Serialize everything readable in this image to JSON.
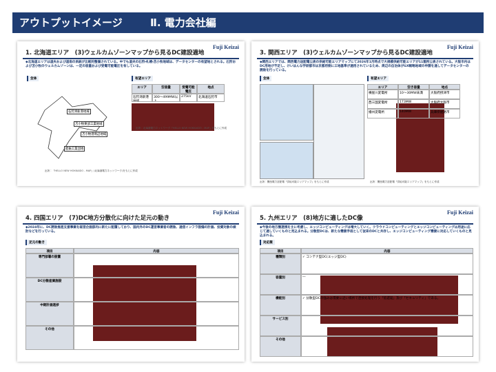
{
  "header": {
    "title": "アウトプットイメージ",
    "subtitle": "Ⅱ. 電力会社編"
  },
  "slides": [
    {
      "title": "1. 北海道エリア　(3)ウェルカムゾーンマップから見るDC建設適地",
      "logo": "Fuji Keizai",
      "description": "◆北海道エリアは道央および道南の系統が比較的整備されている。中でも道央の石狩・札幌・苫小牧地域は、データセンターの有望地とされる。石狩および苫小牧のウェルカムゾーンは、一定の容量および受電可能電圧を有している。",
      "left_label": "全体",
      "right_label": "有望エリア",
      "map_labels": [
        "石狩湾新港地域",
        "苫小牧東部工業地域",
        "苫小牧港周辺地域",
        "胆振工業団地"
      ],
      "table": {
        "header": [
          "エリア",
          "空容量",
          "受電可能電圧",
          "地点"
        ],
        "rows": [
          [
            "石狩湾新港地域",
            "300～499MW以上",
            "275kV",
            "北海道石狩市"
          ]
        ]
      },
      "sources": [
        "出所：「HELLO NEW HOKKAIDO - MAP」(北海道電力ネットワーク)をもとに作成",
        "出所：北海道電力ネットワーク「HELLO NEW HOKKAIDO - MAP」をもとに作成"
      ]
    },
    {
      "title": "3. 関西エリア　(3)ウェルカムゾーンマップから見るDC建設適地",
      "logo": "Fuji Keizai",
      "description": "◆関西エリアでは、関西電力送配電公表の供給可能エリアマップにて2026年1月時点で大規模供給可能エリアが11箇所公表されている。大阪市内はDC用地が不足し、けいはんな学研都市は京都府側に三地基準が適用されているため、周辺の自治体がGX戦略地域の申請を通してデータセンターの誘致を行っている。",
      "left_label": "全体",
      "right_label": "有望エリア",
      "table": {
        "header": [
          "エリア",
          "空き容量",
          "地点"
        ],
        "rows": [
          [
            "横屋川変電所",
            "10～30MW未満",
            "大阪府摂津市"
          ],
          [
            "西三国変電所",
            "173MW",
            "大阪府大阪市"
          ],
          [
            "播州変電所",
            "140MW",
            "兵庫県姫路市"
          ]
        ]
      },
      "sources": [
        "出所：関西電力送配電「供給可能エリアマップ」をもとに作成",
        "出所：関西電力送配電「供給可能エリアマップ」をもとに作成"
      ]
    },
    {
      "title": "4. 四国エリア　(7)DC地方分散化に向けた足元の動き",
      "logo": "Fuji Keizai",
      "description": "◆2024年に、DC誘致推進支援事業を経営企画部内に新たに配置しており、国内外のDC運営事業者の誘致、通信インフラ設備の計画、投資対象の検討などを行っている。",
      "section": "足元の動き",
      "table": {
        "header": [
          "項目",
          "内容"
        ],
        "rows": [
          "専門部署の設置",
          "DC分散産業施設",
          "中期計画進捗",
          "その他"
        ]
      }
    },
    {
      "title": "5. 九州エリア　(8)地方に適したDC像",
      "logo": "Fuji Keizai",
      "description": "◆今後の地方圏連携を主に考慮し、エッジコンピューティングは増大していく。クラウドコンピューティングとエッジコンピューティングは用途に応じて適していくものと見込まれる。分散型DCは、新たな需要手段として従来のDCと共存し、エッジコンピューティング需要に対応していくものと見込まれる。",
      "section": "対応策",
      "table": {
        "header": [
          "項目",
          "内容"
        ],
        "rows": [
          [
            "種類別",
            "✓ コンテナ型DC(エッジ型DC)"
          ],
          [
            "容量別",
            "―"
          ],
          [
            "機能別",
            "✓ 分散型DCの強みは需要に近い場所で直接処理を行う「低遅延」及び「セキュリティ」である。"
          ],
          [
            "サービス別",
            ""
          ],
          [
            "その他",
            ""
          ]
        ]
      }
    }
  ]
}
